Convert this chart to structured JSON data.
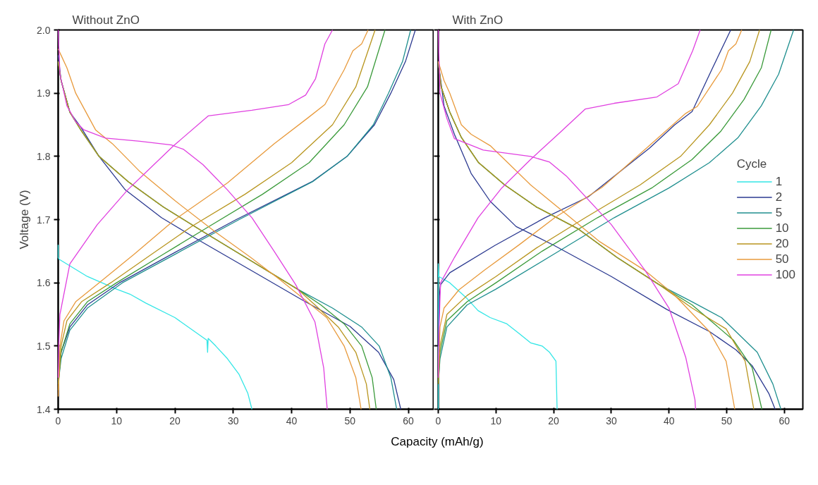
{
  "chart_data": [
    {
      "type": "line",
      "title": "Without ZnO",
      "ylabel": "Voltage (V)",
      "xlabel": "Capacity (mAh/g)",
      "xlim": [
        0,
        64.4
      ],
      "ylim": [
        1.4,
        2.0
      ],
      "xticks": [
        0,
        10,
        20,
        30,
        40,
        50,
        60
      ],
      "yticks": [
        1.4,
        1.5,
        1.6,
        1.7,
        1.8,
        1.9,
        {
          "value": 2.0,
          "label": "2.0"
        }
      ],
      "grid": false,
      "legend": false,
      "line_style": "solid",
      "marker": "none",
      "series": [
        {
          "color": "#33e6e6",
          "x": [
            0,
            0,
            0.2,
            5,
            10,
            12.3,
            15,
            20,
            25.5,
            25.6,
            25.7,
            27,
            29,
            31,
            32.5,
            33.2
          ],
          "values": [
            1.66,
            1.64,
            1.637,
            1.61,
            1.59,
            1.582,
            1.568,
            1.545,
            1.509,
            1.49,
            1.512,
            1.5,
            1.48,
            1.455,
            1.425,
            1.4
          ]
        },
        {
          "color": "#2b3990",
          "x": [
            0,
            0.5,
            2,
            5,
            10.5,
            20,
            30.5,
            43.5,
            49.5,
            54.2,
            57,
            59.5,
            61.2,
            null,
            0,
            0.5,
            2,
            3.9,
            7,
            11.5,
            17.7,
            24,
            33,
            41.6,
            50,
            54.9,
            57.5,
            58.7
          ],
          "values": [
            1.44,
            1.49,
            1.53,
            1.565,
            1.6,
            1.648,
            1.7,
            1.76,
            1.8,
            1.85,
            1.9,
            1.95,
            2.0,
            null,
            1.96,
            1.92,
            1.87,
            1.846,
            1.8,
            1.747,
            1.703,
            1.668,
            1.62,
            1.574,
            1.531,
            1.49,
            1.447,
            1.4
          ]
        },
        {
          "color": "#1f8f8f",
          "x": [
            0,
            0.5,
            2,
            5,
            11,
            20,
            31,
            43.6,
            49.5,
            54,
            56.6,
            59,
            60.4,
            null,
            0,
            0.5,
            2,
            4,
            7,
            12,
            18,
            25,
            33,
            41,
            47,
            52,
            55,
            57,
            58
          ],
          "values": [
            1.44,
            1.48,
            1.525,
            1.56,
            1.6,
            1.645,
            1.7,
            1.76,
            1.8,
            1.85,
            1.9,
            1.95,
            2.0,
            null,
            1.95,
            1.92,
            1.87,
            1.84,
            1.8,
            1.76,
            1.72,
            1.68,
            1.635,
            1.59,
            1.56,
            1.53,
            1.5,
            1.45,
            1.4
          ]
        },
        {
          "color": "#3a9a3a",
          "x": [
            0,
            0.5,
            2,
            5,
            10,
            18,
            26,
            35,
            43,
            49,
            53,
            56,
            null,
            0,
            0.5,
            2,
            4,
            7,
            12,
            18,
            25,
            33,
            41,
            45,
            49,
            52,
            53.8,
            54.5
          ],
          "values": [
            1.44,
            1.49,
            1.535,
            1.57,
            1.6,
            1.645,
            1.69,
            1.74,
            1.79,
            1.85,
            1.91,
            2.0,
            null,
            1.95,
            1.92,
            1.87,
            1.84,
            1.8,
            1.76,
            1.72,
            1.68,
            1.635,
            1.59,
            1.565,
            1.535,
            1.5,
            1.45,
            1.4
          ]
        },
        {
          "color": "#b8951e",
          "x": [
            0,
            0.5,
            1.5,
            4,
            9,
            16,
            23,
            32,
            40,
            47,
            51,
            54.3,
            null,
            0,
            0.5,
            2,
            4,
            7,
            12,
            18,
            25,
            33,
            41,
            44,
            48,
            51,
            52.8,
            53.4
          ],
          "values": [
            1.43,
            1.5,
            1.54,
            1.57,
            1.6,
            1.645,
            1.69,
            1.74,
            1.79,
            1.85,
            1.91,
            2.0,
            null,
            1.95,
            1.92,
            1.87,
            1.84,
            1.8,
            1.76,
            1.72,
            1.68,
            1.635,
            1.59,
            1.565,
            1.53,
            1.49,
            1.44,
            1.4
          ]
        },
        {
          "color": "#e89a3c",
          "x": [
            0,
            0.3,
            1,
            3,
            7,
            13,
            20,
            29,
            37,
            42.8,
            45.7,
            49,
            50.5,
            52,
            53.1,
            null,
            0,
            0.5,
            1.5,
            3,
            6.4,
            9.3,
            14,
            20,
            27,
            33,
            38,
            42,
            46,
            49,
            51,
            51.9
          ],
          "values": [
            1.42,
            1.5,
            1.54,
            1.57,
            1.6,
            1.645,
            1.7,
            1.758,
            1.82,
            1.861,
            1.882,
            1.937,
            1.967,
            1.978,
            2.0,
            null,
            1.97,
            1.96,
            1.94,
            1.9,
            1.842,
            1.82,
            1.776,
            1.73,
            1.68,
            1.64,
            1.605,
            1.575,
            1.545,
            1.5,
            1.45,
            1.4
          ]
        },
        {
          "color": "#e040e0",
          "x": [
            0,
            0.1,
            0.3,
            2,
            6.7,
            11.9,
            19.8,
            25.7,
            33.2,
            39.5,
            42.4,
            44.1,
            45.7,
            47,
            null,
            0,
            0.3,
            1.5,
            3,
            4.4,
            8.1,
            14,
            19.4,
            21.5,
            24.8,
            29,
            33.2,
            37,
            40.7,
            44,
            45.5,
            46.1
          ],
          "values": [
            1.45,
            1.5,
            1.55,
            1.63,
            1.692,
            1.747,
            1.817,
            1.864,
            1.873,
            1.882,
            1.897,
            1.923,
            1.978,
            2.0,
            null,
            2.0,
            1.93,
            1.88,
            1.855,
            1.842,
            1.829,
            1.824,
            1.818,
            1.811,
            1.787,
            1.747,
            1.703,
            1.65,
            1.597,
            1.538,
            1.465,
            1.4
          ]
        }
      ]
    },
    {
      "type": "line",
      "title": "With ZnO",
      "legend_title": "Cycle",
      "xlim": [
        0,
        63.2
      ],
      "ylim": [
        1.4,
        2.0
      ],
      "xticks": [
        0,
        10,
        20,
        30,
        40,
        50,
        60
      ],
      "yticks": [
        1.4,
        1.5,
        1.6,
        1.7,
        1.8,
        1.9,
        2.0
      ],
      "tick_labels": "x",
      "grid": false,
      "legend": "right",
      "line_style": "solid",
      "marker": "none",
      "series": [
        {
          "name": "1",
          "color": "#33e6e6",
          "x": [
            0,
            0,
            0.1,
            2,
            5,
            6.9,
            9,
            11.9,
            14,
            16,
            18,
            19.3,
            20.4,
            20.6
          ],
          "values": [
            1.4,
            1.63,
            1.61,
            1.6,
            1.575,
            1.556,
            1.545,
            1.535,
            1.52,
            1.505,
            1.5,
            1.49,
            1.476,
            1.4
          ]
        },
        {
          "name": "2",
          "color": "#2b3990",
          "x": [
            0,
            0.2,
            0.4,
            2,
            9.8,
            18.5,
            26,
            36.6,
            41,
            44,
            47.4,
            50.7,
            null,
            0,
            1,
            2.8,
            5.7,
            9,
            13.5,
            20.1,
            30,
            39.6,
            47,
            51.6,
            54.4,
            57.3,
            58.4
          ],
          "values": [
            1.5,
            1.58,
            1.597,
            1.616,
            1.659,
            1.703,
            1.736,
            1.813,
            1.85,
            1.871,
            1.937,
            2.0,
            null,
            1.95,
            1.88,
            1.835,
            1.773,
            1.729,
            1.689,
            1.659,
            1.61,
            1.558,
            1.523,
            1.494,
            1.469,
            1.425,
            1.4
          ]
        },
        {
          "name": "5",
          "color": "#1f8f8f",
          "x": [
            0,
            0.3,
            1.5,
            5,
            10,
            20,
            30.5,
            40,
            47,
            52,
            56,
            59,
            61.6,
            null,
            0,
            0.5,
            2,
            4,
            7,
            11.5,
            17,
            24.3,
            31,
            38.3,
            44,
            49.1,
            55.3,
            58,
            59.4
          ],
          "values": [
            1.44,
            1.48,
            1.53,
            1.565,
            1.59,
            1.645,
            1.703,
            1.75,
            1.79,
            1.83,
            1.88,
            1.93,
            2.0,
            null,
            1.95,
            1.91,
            1.87,
            1.83,
            1.79,
            1.755,
            1.72,
            1.685,
            1.64,
            1.597,
            1.57,
            1.545,
            1.49,
            1.44,
            1.4
          ]
        },
        {
          "name": "10",
          "color": "#3a9a3a",
          "x": [
            0,
            0.3,
            1.5,
            5,
            10,
            18,
            27.6,
            37,
            44,
            49,
            53,
            56,
            57.7,
            null,
            0,
            0.5,
            2,
            4,
            7,
            11.5,
            17,
            24.3,
            31,
            38.3,
            44,
            51.2,
            54.4,
            56.1
          ],
          "values": [
            1.44,
            1.49,
            1.54,
            1.57,
            1.6,
            1.65,
            1.703,
            1.75,
            1.795,
            1.84,
            1.89,
            1.94,
            2.0,
            null,
            1.95,
            1.91,
            1.87,
            1.83,
            1.79,
            1.755,
            1.72,
            1.685,
            1.64,
            1.597,
            1.565,
            1.509,
            1.466,
            1.4
          ]
        },
        {
          "name": "20",
          "color": "#b8951e",
          "x": [
            0,
            0.3,
            1.5,
            5,
            10,
            17,
            25.5,
            35,
            42,
            47,
            51,
            54,
            55.7,
            null,
            0,
            0.5,
            2,
            4,
            7,
            11.5,
            17,
            24.3,
            31,
            38.3,
            44,
            49.9,
            53.2,
            54.7
          ],
          "values": [
            1.44,
            1.5,
            1.55,
            1.58,
            1.61,
            1.655,
            1.703,
            1.755,
            1.8,
            1.85,
            1.9,
            1.95,
            2.0,
            null,
            1.95,
            1.91,
            1.87,
            1.83,
            1.79,
            1.755,
            1.72,
            1.685,
            1.64,
            1.597,
            1.56,
            1.527,
            1.476,
            1.4
          ]
        },
        {
          "name": "50",
          "color": "#e89a3c",
          "x": [
            0,
            0.3,
            1,
            3.6,
            8,
            14,
            20.2,
            28.4,
            36.6,
            42.9,
            44.9,
            49.1,
            50.3,
            51.6,
            52.6,
            null,
            0,
            1,
            2,
            4,
            5.7,
            9,
            16,
            22,
            28,
            35.9,
            40.8,
            47,
            49.9,
            51.4
          ],
          "values": [
            1.45,
            1.53,
            1.56,
            1.589,
            1.62,
            1.66,
            1.703,
            1.751,
            1.817,
            1.868,
            1.879,
            1.937,
            1.967,
            1.978,
            2.0,
            null,
            1.95,
            1.92,
            1.9,
            1.85,
            1.835,
            1.817,
            1.755,
            1.71,
            1.665,
            1.619,
            1.582,
            1.523,
            1.476,
            1.4
          ]
        },
        {
          "name": "100",
          "color": "#e040e0",
          "x": [
            0,
            0.1,
            0.4,
            2.8,
            6.9,
            11,
            16,
            21,
            25.5,
            30.5,
            37.9,
            41.6,
            44.1,
            45.4,
            null,
            0,
            0.3,
            1.5,
            2.8,
            7.8,
            16,
            19.3,
            22.2,
            30,
            35.9,
            40,
            42.9,
            44.5,
            44.6
          ],
          "values": [
            1.45,
            1.52,
            1.6,
            1.64,
            1.703,
            1.75,
            1.795,
            1.837,
            1.875,
            1.884,
            1.894,
            1.915,
            1.967,
            2.0,
            null,
            2.0,
            1.9,
            1.86,
            1.828,
            1.81,
            1.8,
            1.791,
            1.769,
            1.692,
            1.619,
            1.56,
            1.482,
            1.415,
            1.4
          ]
        }
      ]
    }
  ]
}
